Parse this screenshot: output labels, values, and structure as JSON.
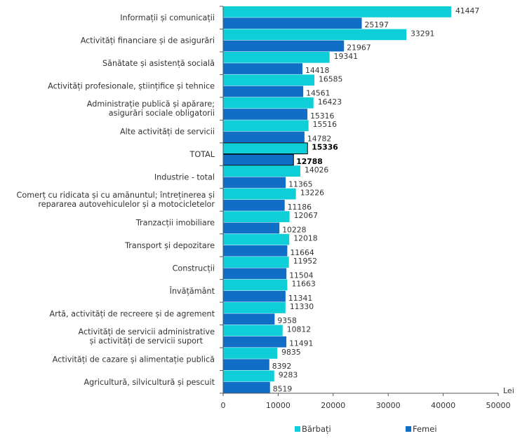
{
  "chart_data": {
    "type": "bar",
    "orientation": "horizontal",
    "title": "",
    "xlabel": "Lei",
    "ylabel": "",
    "xlim": [
      0,
      50000
    ],
    "xticks": [
      0,
      10000,
      20000,
      30000,
      40000,
      50000
    ],
    "xtick_labels": [
      "0",
      "10000",
      "20000",
      "30000",
      "40000",
      "50000"
    ],
    "grid": false,
    "legend_position": "bottom",
    "categories": [
      [
        "Informații și comunicații"
      ],
      [
        "Activități financiare și de asigurări"
      ],
      [
        "Sănătate și asistență socială"
      ],
      [
        "Activități profesionale, științifice și tehnice"
      ],
      [
        "Administrație publică și apărare;",
        "asigurări sociale obligatorii"
      ],
      [
        "Alte activități de servicii"
      ],
      [
        "TOTAL"
      ],
      [
        "Industrie - total"
      ],
      [
        "Comerț cu ridicata și cu amănuntul; întreținerea și",
        "repararea autovehiculelor și a motocicletelor"
      ],
      [
        "Tranzacții imobiliare"
      ],
      [
        "Transport și depozitare"
      ],
      [
        "Construcții"
      ],
      [
        "Învățământ"
      ],
      [
        "Artă, activități de recreere și de agrement"
      ],
      [
        "Activități de servicii administrative",
        "și activități de servicii suport"
      ],
      [
        "Activități de cazare și alimentație publică"
      ],
      [
        "Agricultură, silvicultură și pescuit"
      ]
    ],
    "highlighted_category_index": 6,
    "series": [
      {
        "name": "Bărbați",
        "color": "#0ecfd8",
        "values": [
          41447,
          33291,
          19341,
          16585,
          16423,
          15516,
          15336,
          14026,
          13226,
          12067,
          12018,
          11952,
          11663,
          11330,
          10812,
          9835,
          9283
        ]
      },
      {
        "name": "Femei",
        "color": "#116ec6",
        "values": [
          25197,
          21967,
          14418,
          14561,
          15316,
          14782,
          12788,
          11365,
          11186,
          10228,
          11664,
          11504,
          11341,
          9358,
          11491,
          8392,
          8519
        ]
      }
    ]
  }
}
